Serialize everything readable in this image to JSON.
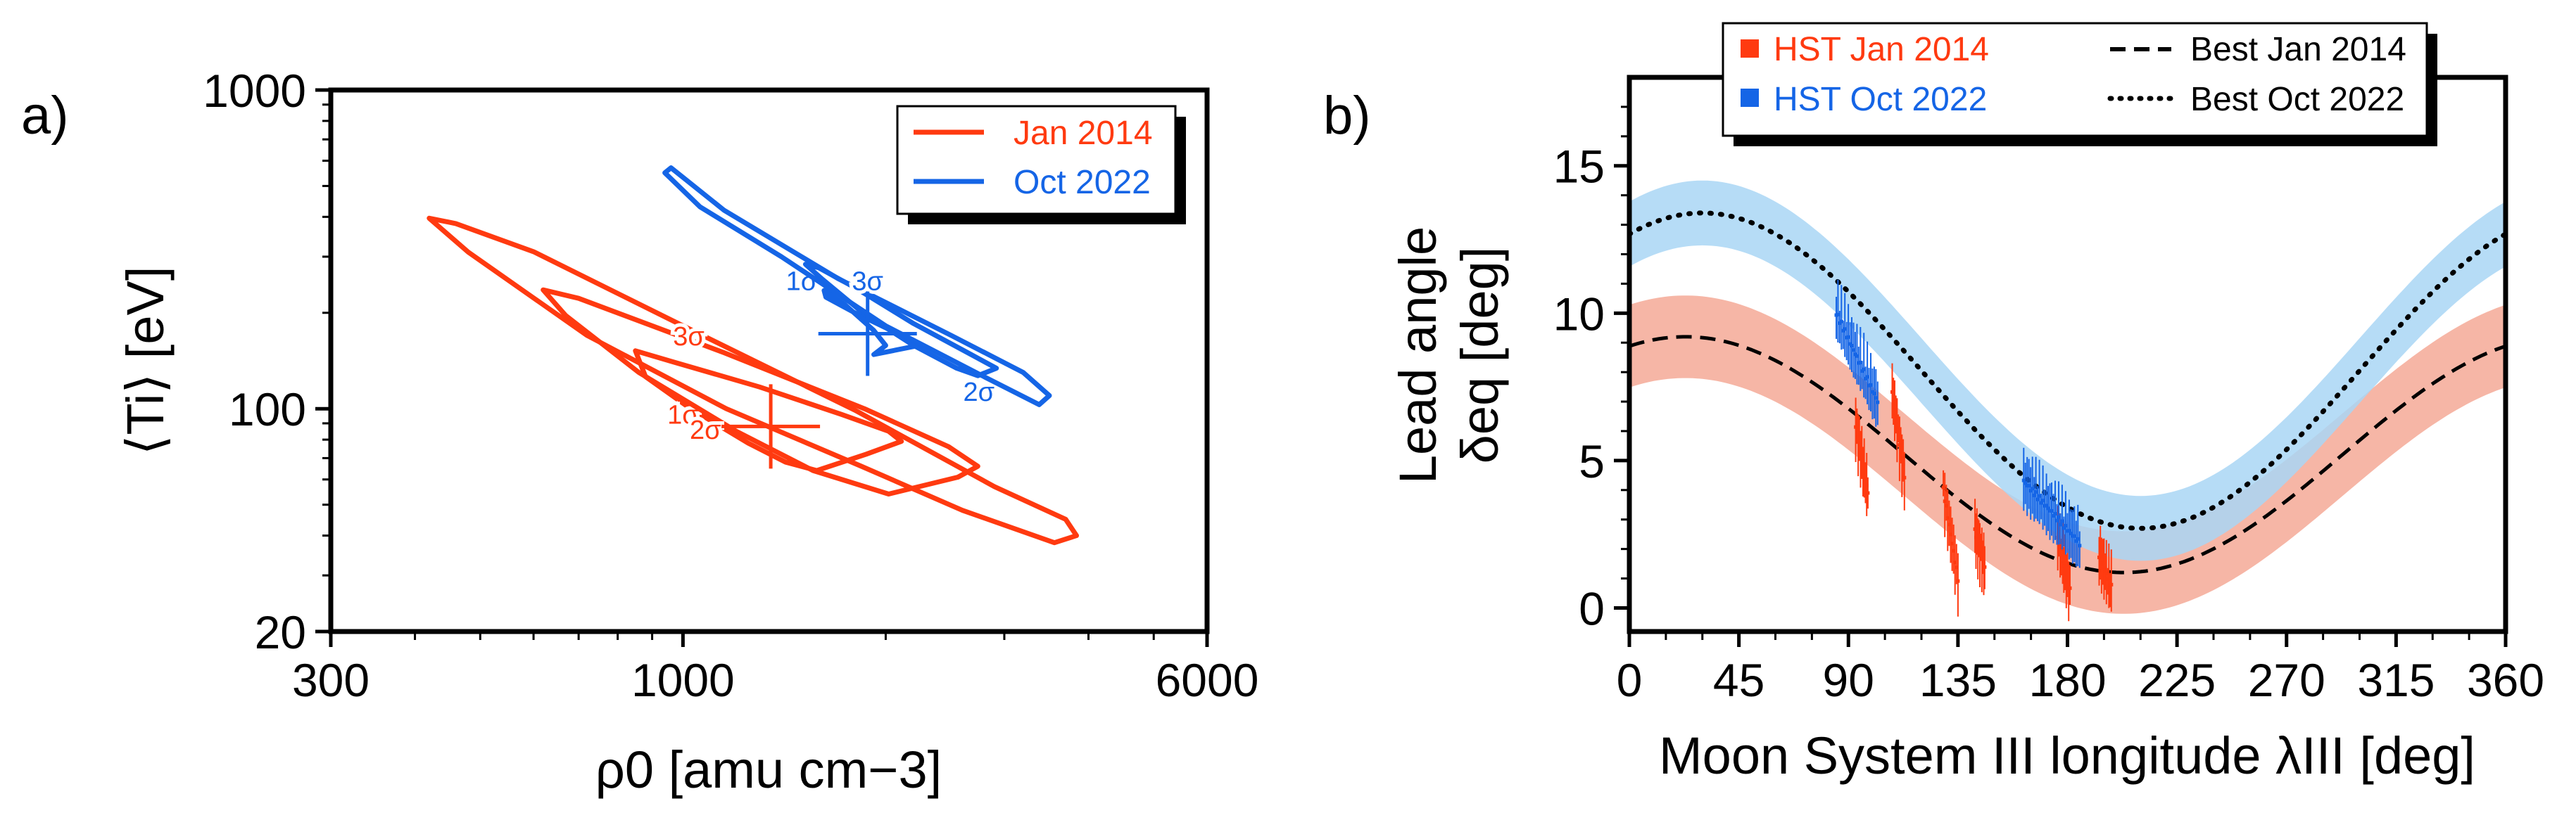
{
  "chart_data": [
    {
      "panel_label": "a)",
      "type": "contour",
      "xlabel": "ρ0 [amu cm−3]",
      "ylabel": "⟨Ti⟩ [eV]",
      "x_scale": "log",
      "y_scale": "log",
      "xlim": [
        300,
        6000
      ],
      "ylim": [
        20,
        1000
      ],
      "x_ticks": [
        "300",
        "1000",
        "6000"
      ],
      "y_ticks": [
        "20",
        "100",
        "1000"
      ],
      "legend_position": "top-right",
      "legend": [
        {
          "label": "Jan 2014",
          "color": "#ff3a10"
        },
        {
          "label": "Oct 2022",
          "color": "#1565e6"
        }
      ],
      "series": [
        {
          "name": "Jan 2014",
          "color": "#ff3a10",
          "center": [
            1350,
            88
          ],
          "contours": [
            {
              "label": "1σ",
              "label_at": [
                1000,
                96
              ],
              "polygon": [
                [
                  1580,
                  64
                ],
                [
                  1870,
                  72
                ],
                [
                  2110,
                  79
                ],
                [
                  2020,
                  85
                ],
                [
                  1720,
                  96
                ],
                [
                  1300,
                  117
                ],
                [
                  970,
                  140
                ],
                [
                  850,
                  152
                ],
                [
                  880,
                  126
                ],
                [
                  1020,
                  101
                ],
                [
                  1250,
                  78
                ],
                [
                  1420,
                  68
                ]
              ]
            },
            {
              "label": "2σ",
              "label_at": [
                1080,
                86
              ],
              "polygon": [
                [
                  2020,
                  54
                ],
                [
                  2560,
                  61
                ],
                [
                  2740,
                  66
                ],
                [
                  2480,
                  76
                ],
                [
                  1860,
                  100
                ],
                [
                  1150,
                  150
                ],
                [
                  700,
                  222
                ],
                [
                  620,
                  236
                ],
                [
                  670,
                  196
                ],
                [
                  860,
                  130
                ],
                [
                  1200,
                  85
                ],
                [
                  1560,
                  64
                ]
              ]
            },
            {
              "label": "3σ",
              "label_at": [
                1020,
                169
              ],
              "polygon": [
                [
                  3560,
                  38
                ],
                [
                  3840,
                  40
                ],
                [
                  3700,
                  45
                ],
                [
                  2900,
                  57
                ],
                [
                  1800,
                  99
                ],
                [
                  1000,
                  182
                ],
                [
                  600,
                  311
                ],
                [
                  460,
                  381
                ],
                [
                  420,
                  396
                ],
                [
                  480,
                  310
                ],
                [
                  720,
                  170
                ],
                [
                  1160,
                  100
                ],
                [
                  1840,
                  66
                ],
                [
                  2600,
                  48
                ]
              ]
            }
          ]
        },
        {
          "name": "Oct 2022",
          "color": "#1565e6",
          "center": [
            1880,
            172
          ],
          "contours": [
            {
              "label": "1σ",
              "label_at": [
                1500,
                252
              ],
              "polygon": [
                [
                  1920,
                  148
                ],
                [
                  2240,
                  158
                ],
                [
                  2050,
                  175
                ],
                [
                  1800,
                  200
                ],
                [
                  1630,
                  224
                ],
                [
                  1620,
                  235
                ],
                [
                  1740,
                  212
                ],
                [
                  1920,
                  176
                ],
                [
                  2000,
                  158
                ]
              ]
            },
            {
              "label": "2σ",
              "label_at": [
                2750,
                113
              ],
              "polygon": [
                [
                  2740,
                  127
                ],
                [
                  2920,
                  134
                ],
                [
                  2600,
                  153
                ],
                [
                  2200,
                  185
                ],
                [
                  1800,
                  240
                ],
                [
                  1590,
                  277
                ],
                [
                  1520,
                  284
                ],
                [
                  1610,
                  255
                ],
                [
                  1850,
                  200
                ],
                [
                  2200,
                  158
                ],
                [
                  2550,
                  134
                ]
              ]
            },
            {
              "label": "3σ",
              "label_at": [
                1880,
                252
              ],
              "polygon": [
                [
                  3380,
                  103
                ],
                [
                  3500,
                  110
                ],
                [
                  3200,
                  130
                ],
                [
                  2500,
                  170
                ],
                [
                  1700,
                  256
                ],
                [
                  1150,
                  420
                ],
                [
                  960,
                  570
                ],
                [
                  940,
                  550
                ],
                [
                  1060,
                  430
                ],
                [
                  1400,
                  300
                ],
                [
                  2000,
                  182
                ],
                [
                  2800,
                  126
                ]
              ]
            }
          ]
        }
      ]
    },
    {
      "panel_label": "b)",
      "type": "line+scatter",
      "xlabel": "Moon System III longitude λIII [deg]",
      "ylabel": "Lead angle δeq [deg]",
      "ylabel_line1": "Lead angle",
      "ylabel_line2": "δeq [deg]",
      "xlim": [
        0,
        360
      ],
      "ylim": [
        -0.8,
        18
      ],
      "x_ticks": [
        0,
        45,
        90,
        135,
        180,
        225,
        270,
        315,
        360
      ],
      "y_ticks": [
        0,
        5,
        10,
        15
      ],
      "legend_position": "top-center",
      "legend": [
        {
          "label": "HST Jan 2014",
          "color": "#ff3a10",
          "marker": "square"
        },
        {
          "label": "HST Oct 2022",
          "color": "#1565e6",
          "marker": "square"
        },
        {
          "label": "Best Jan 2014",
          "style": "dashed"
        },
        {
          "label": "Best Oct 2022",
          "style": "dotted"
        }
      ],
      "fits": [
        {
          "name": "Best Jan 2014",
          "style": "dashed",
          "band_color": "#f4a996",
          "band_halfwidth": 1.4,
          "mean": 5.2,
          "amplitude": 4.0,
          "peak_longitude": 23
        },
        {
          "name": "Best Oct 2022",
          "style": "dotted",
          "band_color": "#a9d6f5",
          "band_halfwidth": 1.1,
          "mean": 8.05,
          "amplitude": 5.35,
          "peak_longitude": 30
        }
      ],
      "observations": [
        {
          "name": "HST Jan 2014",
          "color": "#ff3a10",
          "segments": [
            {
              "x": [
                93,
                98
              ],
              "y": [
                6.2,
                3.9
              ]
            },
            {
              "x": [
                108,
                113
              ],
              "y": [
                7.3,
                4.5
              ]
            },
            {
              "x": [
                129,
                135
              ],
              "y": [
                4.0,
                1.0
              ]
            },
            {
              "x": [
                142,
                146
              ],
              "y": [
                2.6,
                1.4
              ]
            },
            {
              "x": [
                176,
                181
              ],
              "y": [
                2.4,
                0.6
              ]
            },
            {
              "x": [
                193,
                198
              ],
              "y": [
                1.8,
                0.7
              ]
            }
          ]
        },
        {
          "name": "HST Oct 2022",
          "color": "#1565e6",
          "segments": [
            {
              "x": [
                85,
                102
              ],
              "y": [
                10.0,
                7.0
              ]
            },
            {
              "x": [
                162,
                185
              ],
              "y": [
                4.3,
                2.2
              ]
            }
          ]
        }
      ]
    }
  ]
}
